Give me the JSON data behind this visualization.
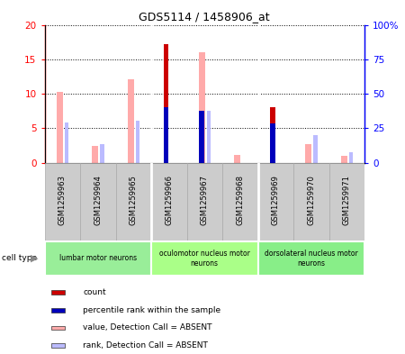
{
  "title": "GDS5114 / 1458906_at",
  "samples": [
    "GSM1259963",
    "GSM1259964",
    "GSM1259965",
    "GSM1259966",
    "GSM1259967",
    "GSM1259968",
    "GSM1259969",
    "GSM1259970",
    "GSM1259971"
  ],
  "count_values": [
    0,
    0,
    0,
    17.2,
    0,
    0,
    8.0,
    0,
    0
  ],
  "rank_values_pct": [
    0,
    0,
    0,
    40.0,
    38.0,
    0,
    28.5,
    0,
    0
  ],
  "value_absent": [
    10.3,
    2.5,
    12.1,
    0,
    16.0,
    1.1,
    0,
    2.7,
    1.0
  ],
  "rank_absent_pct": [
    29.5,
    13.5,
    30.5,
    0,
    38.0,
    0,
    0,
    20.0,
    8.0
  ],
  "cell_types": [
    {
      "label": "lumbar motor neurons",
      "start": 0,
      "end": 3,
      "color": "#99ee99"
    },
    {
      "label": "oculomotor nucleus motor\nneurons",
      "start": 3,
      "end": 6,
      "color": "#aaff88"
    },
    {
      "label": "dorsolateral nucleus motor\nneurons",
      "start": 6,
      "end": 9,
      "color": "#88ee88"
    }
  ],
  "ylim_left": [
    0,
    20
  ],
  "ylim_right": [
    0,
    100
  ],
  "yticks_left": [
    0,
    5,
    10,
    15,
    20
  ],
  "yticks_right": [
    0,
    25,
    50,
    75,
    100
  ],
  "ytick_labels_left": [
    "0",
    "5",
    "10",
    "15",
    "20"
  ],
  "ytick_labels_right": [
    "0",
    "25",
    "50",
    "75",
    "100%"
  ],
  "count_color": "#cc0000",
  "rank_color": "#0000bb",
  "value_absent_color": "#ffaaaa",
  "rank_absent_color": "#bbbbff",
  "plot_bg_color": "#ffffff",
  "xlabel_bg_color": "#cccccc",
  "legend_items": [
    {
      "label": "count",
      "color": "#cc0000"
    },
    {
      "label": "percentile rank within the sample",
      "color": "#0000bb"
    },
    {
      "label": "value, Detection Call = ABSENT",
      "color": "#ffaaaa"
    },
    {
      "label": "rank, Detection Call = ABSENT",
      "color": "#bbbbff"
    }
  ]
}
